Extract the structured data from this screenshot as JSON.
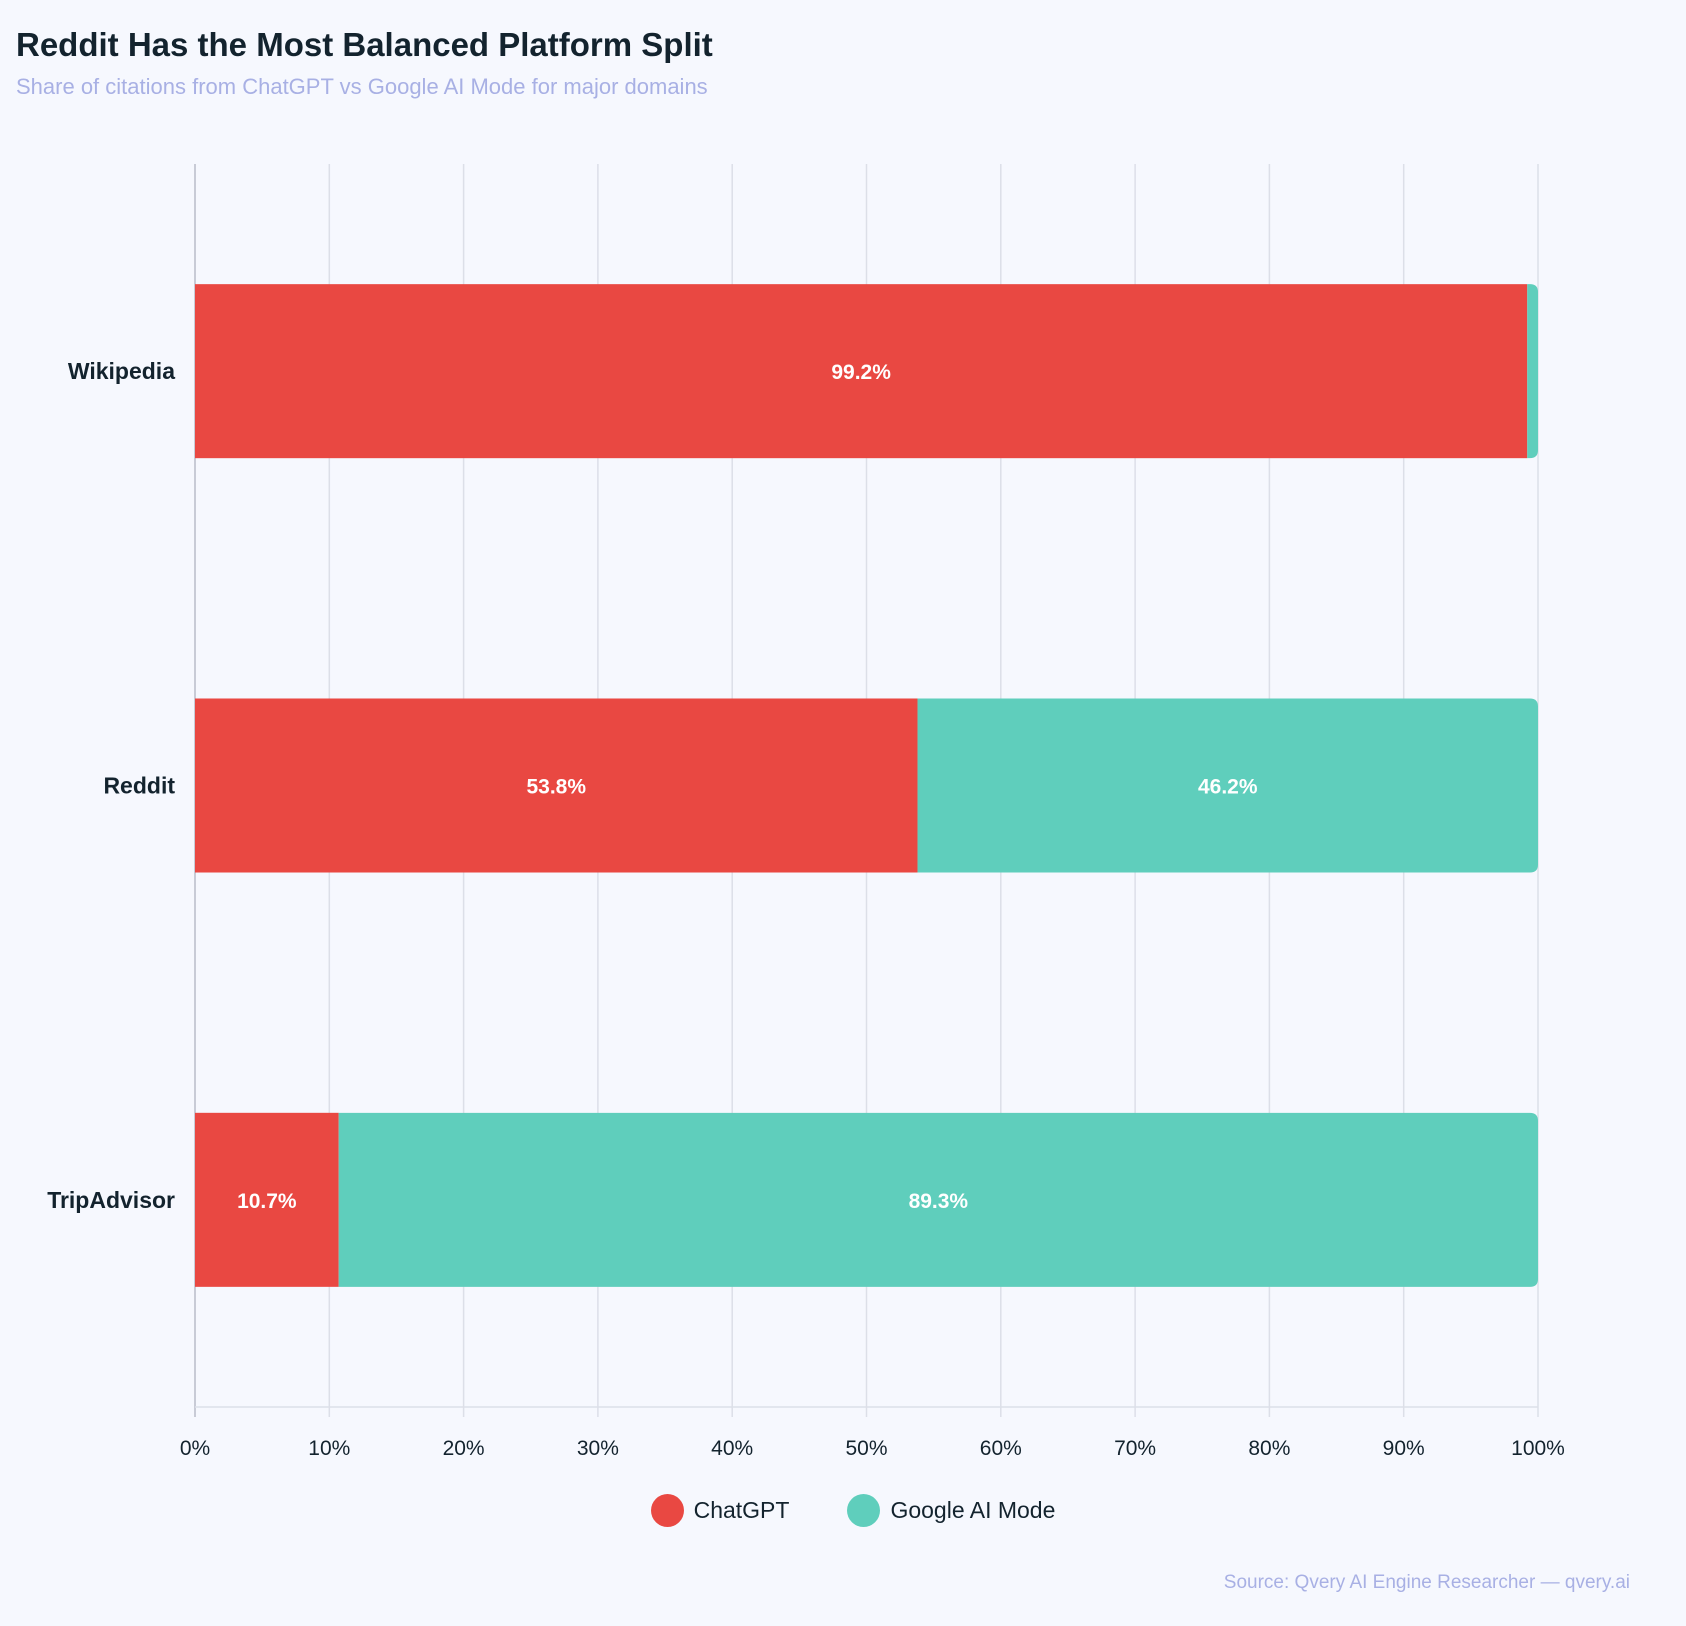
{
  "chart_data": {
    "type": "bar",
    "orientation": "horizontal",
    "stacked": true,
    "title": "Reddit Has the Most Balanced Platform Split",
    "subtitle": "Share of citations from ChatGPT vs Google AI Mode for major domains",
    "categories": [
      "Wikipedia",
      "Reddit",
      "TripAdvisor"
    ],
    "series": [
      {
        "name": "ChatGPT",
        "color": "#e94842",
        "values": [
          99.2,
          53.8,
          10.7
        ],
        "labels": [
          "99.2%",
          "53.8%",
          "10.7%"
        ]
      },
      {
        "name": "Google AI Mode",
        "color": "#5fcebc",
        "values": [
          0.8,
          46.2,
          89.3
        ],
        "labels": [
          "",
          "46.2%",
          "89.3%"
        ]
      }
    ],
    "xlim": [
      0,
      100
    ],
    "xticks": [
      "0%",
      "10%",
      "20%",
      "30%",
      "40%",
      "50%",
      "60%",
      "70%",
      "80%",
      "90%",
      "100%"
    ],
    "xlabel": "",
    "ylabel": "",
    "grid": true,
    "legend_position": "bottom-center",
    "source": "Source: Qvery AI Engine Researcher — qvery.ai"
  }
}
